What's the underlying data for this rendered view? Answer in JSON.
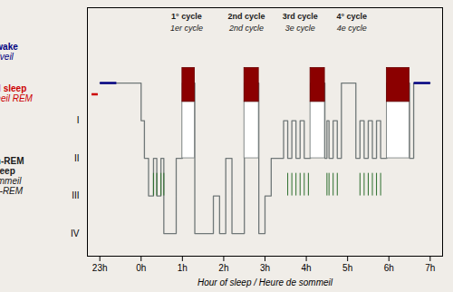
{
  "chart_data": {
    "type": "line",
    "background": "#f0ede8",
    "xlabel": "Hour of sleep / Heure de sommeil",
    "xlim": [
      -1.3,
      7.3
    ],
    "xticks": [
      {
        "value": -1,
        "label": "23h"
      },
      {
        "value": 0,
        "label": "0h"
      },
      {
        "value": 1,
        "label": "1h"
      },
      {
        "value": 2,
        "label": "2h"
      },
      {
        "value": 3,
        "label": "3h"
      },
      {
        "value": 4,
        "label": "4h"
      },
      {
        "value": 5,
        "label": "5h"
      },
      {
        "value": 6,
        "label": "6h"
      },
      {
        "value": 7,
        "label": "7h"
      }
    ],
    "ylim": [
      0.4,
      7.0
    ],
    "yticks": [
      {
        "value": 4,
        "label": "I"
      },
      {
        "value": 3,
        "label": "II"
      },
      {
        "value": 2,
        "label": "III"
      },
      {
        "value": 1,
        "label": "IV"
      }
    ],
    "color": "#707878",
    "x": [
      -1.0,
      0.0,
      0.0,
      0.08,
      0.08,
      0.18,
      0.18,
      0.3,
      0.3,
      0.38,
      0.38,
      0.48,
      0.48,
      0.55,
      0.55,
      0.85,
      0.85,
      1.0,
      1.0,
      1.3,
      1.3,
      1.75,
      1.75,
      1.9,
      1.9,
      2.05,
      2.05,
      2.2,
      2.2,
      2.5,
      2.5,
      2.85,
      2.85,
      3.0,
      3.0,
      3.15,
      3.15,
      3.45,
      3.45,
      3.55,
      3.55,
      3.65,
      3.65,
      3.75,
      3.75,
      3.85,
      3.85,
      3.95,
      3.95,
      4.1,
      4.1,
      4.45,
      4.45,
      4.5,
      4.5,
      4.55,
      4.55,
      4.65,
      4.65,
      4.75,
      4.75,
      4.85,
      4.85,
      5.2,
      5.2,
      5.3,
      5.3,
      5.4,
      5.4,
      5.5,
      5.5,
      5.6,
      5.6,
      5.7,
      5.7,
      5.8,
      5.8,
      5.95,
      5.95,
      6.5,
      6.5,
      6.6,
      6.6,
      7.0
    ],
    "values": [
      5,
      5,
      4,
      4,
      3,
      3,
      2,
      2,
      3,
      3,
      2,
      2,
      3,
      3,
      1,
      1,
      3,
      3,
      5,
      5,
      1,
      1,
      2,
      2,
      1,
      1,
      3,
      3,
      1,
      1,
      5,
      5,
      1,
      1,
      2,
      2,
      3,
      3,
      4,
      4,
      3,
      3,
      4,
      4,
      3,
      3,
      4,
      4,
      3,
      3,
      5,
      5,
      3,
      3,
      4,
      4,
      3,
      3,
      4,
      4,
      3,
      3,
      5,
      5,
      3,
      3,
      4,
      4,
      3,
      3,
      4,
      4,
      3,
      3,
      4,
      4,
      3,
      3,
      5,
      5,
      3,
      3,
      5,
      5
    ],
    "rem": {
      "fill": "#8b0000",
      "edge": "#6b0000",
      "column_fill": "#ffffff",
      "blocks": [
        {
          "x0": 1.0,
          "x1": 1.3,
          "column_bottom": 3.0,
          "y_bot": 4.5,
          "y_top": 5.4
        },
        {
          "x0": 2.5,
          "x1": 2.85,
          "column_bottom": 3.0,
          "y_bot": 4.5,
          "y_top": 5.4
        },
        {
          "x0": 4.1,
          "x1": 4.45,
          "column_bottom": 3.0,
          "y_bot": 4.5,
          "y_top": 5.4
        },
        {
          "x0": 5.95,
          "x1": 6.5,
          "column_bottom": 3.0,
          "y_bot": 4.5,
          "y_top": 5.4
        }
      ]
    },
    "green_ticks": {
      "color": "#2d6e2d",
      "y": [
        2.0,
        2.6
      ],
      "x": [
        [
          0.3,
          0.38,
          0.48,
          0.55
        ],
        [
          3.55,
          3.65,
          3.75,
          3.85,
          3.95,
          4.05
        ],
        [
          4.5,
          4.55,
          4.65,
          4.75
        ],
        [
          5.3,
          5.4,
          5.5,
          5.6,
          5.7,
          5.8
        ]
      ]
    },
    "awake_lines": {
      "color": "#000080",
      "y": 5,
      "x": [
        [
          -1.0,
          -0.6
        ],
        [
          6.6,
          7.0
        ]
      ]
    },
    "rem_marker": {
      "color": "#cc0000",
      "y": 4.7,
      "x": [
        -1.2,
        -1.05
      ]
    },
    "cycle_labels": {
      "color": "#1a1a1a",
      "x": [
        1.1,
        2.55,
        3.85,
        5.1
      ],
      "y_en": 6.85,
      "y_fr": 6.55,
      "en": [
        "1° cycle",
        "2nd cycle",
        "3rd cycle",
        "4° cycle"
      ],
      "fr": [
        "1er cycle",
        "2nd cycle",
        "3e cycle",
        "4e cycle"
      ]
    },
    "stage_labels": [
      {
        "color": "#000080",
        "en": [
          "Awake"
        ],
        "fr": [
          "Eveil"
        ]
      },
      {
        "color": "#cc0000",
        "en": [
          "REM sleep"
        ],
        "fr": [
          "Sommeil REM"
        ]
      },
      {
        "color": "#1a1a1a",
        "en": [
          "Non-REM",
          "sleep"
        ],
        "fr": [
          "Sommeil",
          "non-REM"
        ]
      }
    ]
  }
}
